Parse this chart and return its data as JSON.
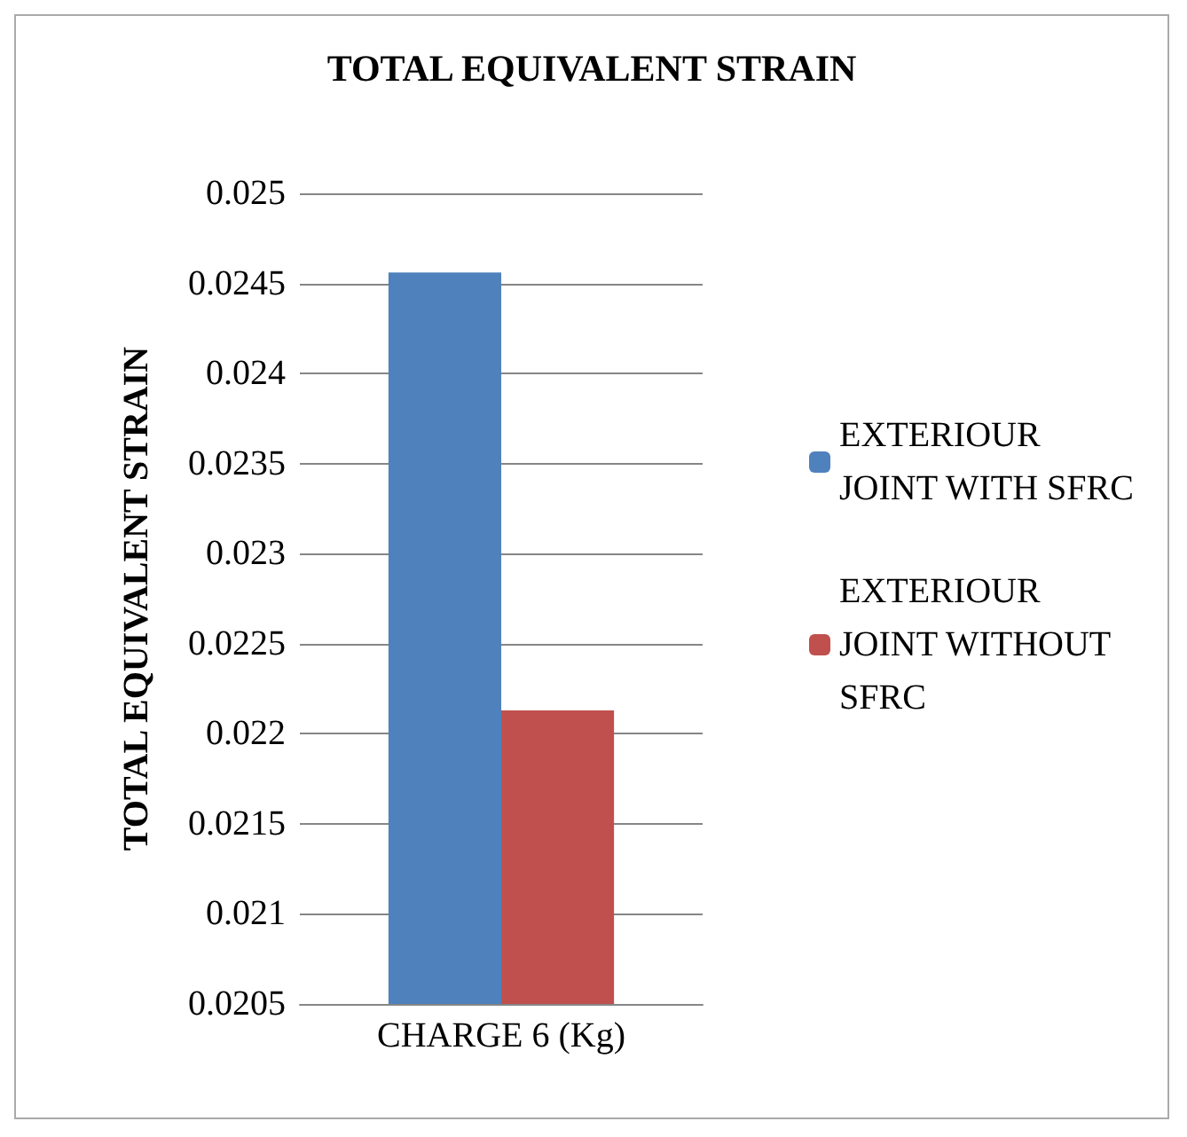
{
  "chart_data": {
    "type": "bar",
    "title": "TOTAL EQUIVALENT STRAIN",
    "ylabel": "TOTAL EQUIVALENT STRAIN",
    "categories": [
      "CHARGE 6 (Kg)"
    ],
    "series": [
      {
        "name": "EXTERIOUR JOINT WITH SFRC",
        "color": "#4f81bd",
        "values": [
          0.02456
        ]
      },
      {
        "name": "EXTERIOUR JOINT WITHOUT SFRC",
        "color": "#c0504d",
        "values": [
          0.02213
        ]
      }
    ],
    "ylim": [
      0.0205,
      0.025
    ],
    "yticks": [
      0.0205,
      0.021,
      0.0215,
      0.022,
      0.0225,
      0.023,
      0.0235,
      0.024,
      0.0245,
      0.025
    ],
    "grid": "y",
    "legend": "right"
  }
}
